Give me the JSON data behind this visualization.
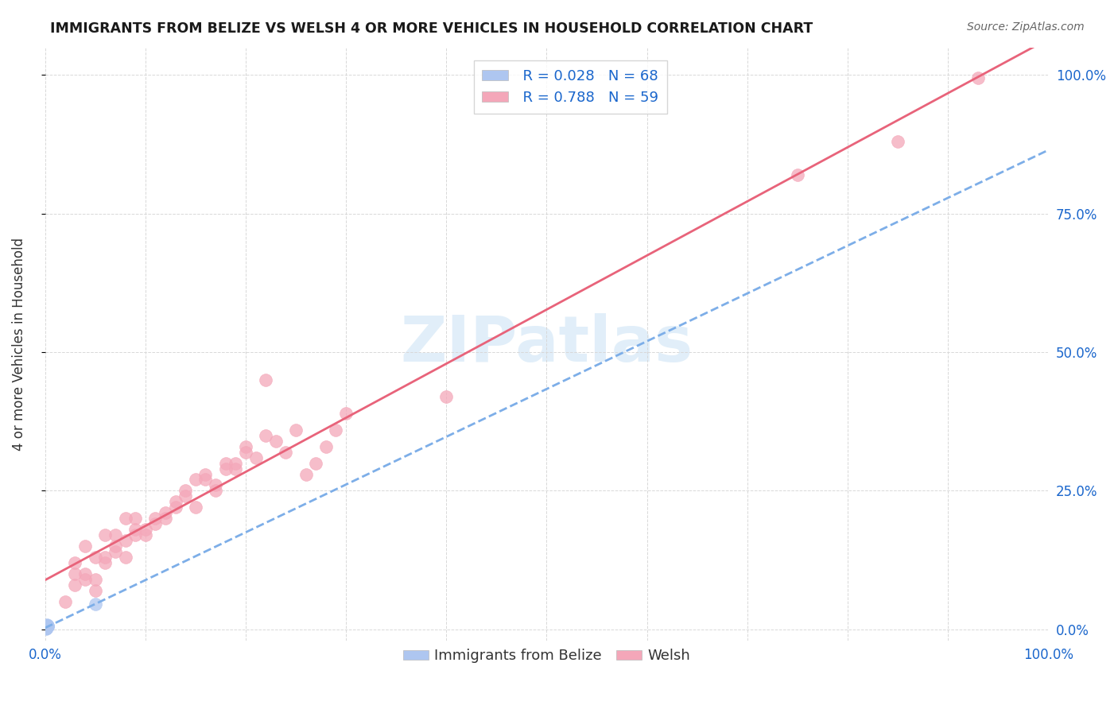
{
  "title": "IMMIGRANTS FROM BELIZE VS WELSH 4 OR MORE VEHICLES IN HOUSEHOLD CORRELATION CHART",
  "source": "Source: ZipAtlas.com",
  "ylabel": "4 or more Vehicles in Household",
  "xlim": [
    0.0,
    1.0
  ],
  "ylim": [
    -0.02,
    1.05
  ],
  "ytick_positions": [
    0.0,
    0.25,
    0.5,
    0.75,
    1.0
  ],
  "ytick_labels": [
    "0.0%",
    "25.0%",
    "50.0%",
    "75.0%",
    "100.0%"
  ],
  "xtick_positions": [
    0.0,
    0.1,
    0.2,
    0.3,
    0.4,
    0.5,
    0.6,
    0.7,
    0.8,
    0.9,
    1.0
  ],
  "belize_color": "#aec6f0",
  "welsh_color": "#f4a7b9",
  "belize_line_color": "#7daee8",
  "welsh_line_color": "#e8637a",
  "watermark_color": "#cde4f5",
  "tick_color": "#1a66cc",
  "grid_color": "#d8d8d8",
  "title_color": "#1a1a1a",
  "source_color": "#666666",
  "ylabel_color": "#333333",
  "legend_label_color": "#1a66cc",
  "bottom_legend_color": "#333333",
  "legend_R1": "R = 0.028",
  "legend_N1": "N = 68",
  "legend_R2": "R = 0.788",
  "legend_N2": "N = 59",
  "legend_label1": "Immigrants from Belize",
  "legend_label2": "Welsh",
  "watermark_text": "ZIPatlas",
  "belize_x": [
    0.001,
    0.002,
    0.001,
    0.003,
    0.001,
    0.002,
    0.001,
    0.002,
    0.001,
    0.003,
    0.001,
    0.002,
    0.001,
    0.002,
    0.001,
    0.001,
    0.002,
    0.001,
    0.002,
    0.001,
    0.001,
    0.002,
    0.001,
    0.002,
    0.001,
    0.001,
    0.003,
    0.001,
    0.002,
    0.001,
    0.001,
    0.002,
    0.001,
    0.001,
    0.002,
    0.001,
    0.002,
    0.001,
    0.001,
    0.002,
    0.001,
    0.001,
    0.002,
    0.001,
    0.001,
    0.002,
    0.001,
    0.001,
    0.002,
    0.001,
    0.001,
    0.001,
    0.002,
    0.001,
    0.001,
    0.001,
    0.002,
    0.001,
    0.001,
    0.001,
    0.001,
    0.001,
    0.002,
    0.001,
    0.001,
    0.05,
    0.001,
    0.001
  ],
  "belize_y": [
    0.005,
    0.008,
    0.003,
    0.006,
    0.004,
    0.007,
    0.003,
    0.005,
    0.004,
    0.006,
    0.003,
    0.005,
    0.004,
    0.006,
    0.003,
    0.002,
    0.007,
    0.003,
    0.005,
    0.004,
    0.003,
    0.006,
    0.002,
    0.005,
    0.003,
    0.004,
    0.007,
    0.002,
    0.006,
    0.003,
    0.003,
    0.005,
    0.002,
    0.004,
    0.006,
    0.003,
    0.005,
    0.002,
    0.003,
    0.006,
    0.002,
    0.003,
    0.005,
    0.003,
    0.002,
    0.006,
    0.003,
    0.002,
    0.005,
    0.003,
    0.002,
    0.003,
    0.005,
    0.002,
    0.003,
    0.002,
    0.006,
    0.002,
    0.003,
    0.002,
    0.002,
    0.003,
    0.005,
    0.002,
    0.003,
    0.045,
    0.002,
    0.001
  ],
  "welsh_x": [
    0.02,
    0.03,
    0.04,
    0.05,
    0.06,
    0.07,
    0.08,
    0.09,
    0.1,
    0.11,
    0.12,
    0.13,
    0.14,
    0.15,
    0.16,
    0.17,
    0.18,
    0.19,
    0.2,
    0.21,
    0.22,
    0.23,
    0.24,
    0.25,
    0.26,
    0.27,
    0.28,
    0.29,
    0.3,
    0.05,
    0.07,
    0.09,
    0.11,
    0.13,
    0.15,
    0.17,
    0.19,
    0.04,
    0.06,
    0.08,
    0.1,
    0.12,
    0.14,
    0.16,
    0.18,
    0.2,
    0.03,
    0.05,
    0.07,
    0.09,
    0.4,
    0.75,
    0.85,
    0.93,
    0.03,
    0.04,
    0.06,
    0.08,
    0.22
  ],
  "welsh_y": [
    0.05,
    0.08,
    0.1,
    0.07,
    0.12,
    0.14,
    0.13,
    0.18,
    0.17,
    0.19,
    0.2,
    0.22,
    0.24,
    0.22,
    0.28,
    0.26,
    0.3,
    0.29,
    0.33,
    0.31,
    0.35,
    0.34,
    0.32,
    0.36,
    0.28,
    0.3,
    0.33,
    0.36,
    0.39,
    0.09,
    0.15,
    0.17,
    0.2,
    0.23,
    0.27,
    0.25,
    0.3,
    0.09,
    0.13,
    0.16,
    0.18,
    0.21,
    0.25,
    0.27,
    0.29,
    0.32,
    0.1,
    0.13,
    0.17,
    0.2,
    0.42,
    0.82,
    0.88,
    0.995,
    0.12,
    0.15,
    0.17,
    0.2,
    0.45
  ]
}
